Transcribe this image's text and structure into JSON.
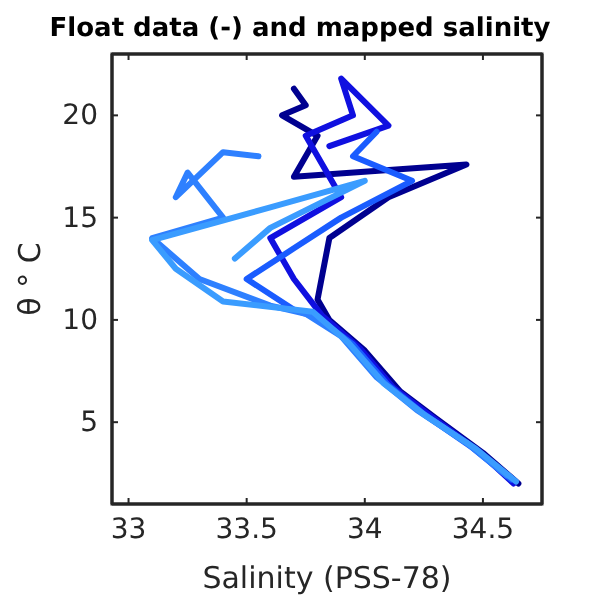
{
  "chart_data": {
    "type": "line",
    "title": "Float data (-) and mapped salinity",
    "xlabel": "Salinity (PSS-78)",
    "ylabel": "θ ° C",
    "xlim": [
      32.93,
      34.75
    ],
    "ylim": [
      1,
      23
    ],
    "xticks": [
      33,
      33.5,
      34,
      34.5
    ],
    "yticks": [
      5,
      10,
      15,
      20
    ],
    "grid": false,
    "marker": "none",
    "line_style": "solid",
    "series": [
      {
        "color": "#000090",
        "x": [
          34.65,
          34.5,
          34.3,
          34.15,
          34.0,
          33.85,
          33.8,
          33.85,
          34.1,
          34.43,
          33.7,
          33.8,
          33.65,
          33.75,
          33.7
        ],
        "values": [
          2,
          3.5,
          5.2,
          6.5,
          8.5,
          10,
          11,
          14,
          16,
          17.6,
          17,
          19,
          20,
          20.5,
          21.3
        ]
      },
      {
        "color": "#1010e0",
        "x": [
          34.63,
          34.48,
          34.28,
          34.12,
          33.98,
          33.82,
          33.7,
          33.6,
          33.9,
          33.75,
          33.95,
          33.9,
          34.1,
          33.85
        ],
        "values": [
          2,
          3.6,
          5.3,
          6.7,
          8.6,
          10.2,
          12,
          14,
          16,
          19,
          20,
          21.8,
          19.5,
          18.5
        ]
      },
      {
        "color": "#1a5cff",
        "x": [
          34.62,
          34.45,
          34.25,
          34.1,
          33.95,
          33.8,
          33.7,
          33.5,
          33.7,
          33.9,
          34.2,
          33.95,
          34.05
        ],
        "values": [
          2.2,
          3.8,
          5.4,
          6.8,
          8.8,
          10.1,
          10.5,
          12,
          13.5,
          15,
          16.8,
          18,
          19.2
        ]
      },
      {
        "color": "#2e80ff",
        "x": [
          34.6,
          34.43,
          34.22,
          34.05,
          33.9,
          33.75,
          33.6,
          33.3,
          33.1,
          33.4,
          33.25,
          33.2,
          33.4,
          33.55
        ],
        "values": [
          2.4,
          4,
          5.6,
          7.2,
          9.2,
          10.3,
          10.7,
          12,
          14,
          15,
          17.2,
          16,
          18.2,
          18
        ]
      },
      {
        "color": "#3a9cff",
        "x": [
          34.64,
          34.47,
          34.26,
          34.08,
          33.93,
          33.78,
          33.4,
          33.2,
          33.1,
          33.6,
          34.0,
          33.6,
          33.45
        ],
        "values": [
          2.1,
          3.7,
          5.3,
          6.9,
          8.9,
          10.4,
          10.9,
          12.5,
          13.9,
          15.5,
          16.8,
          14.5,
          13
        ]
      }
    ]
  }
}
